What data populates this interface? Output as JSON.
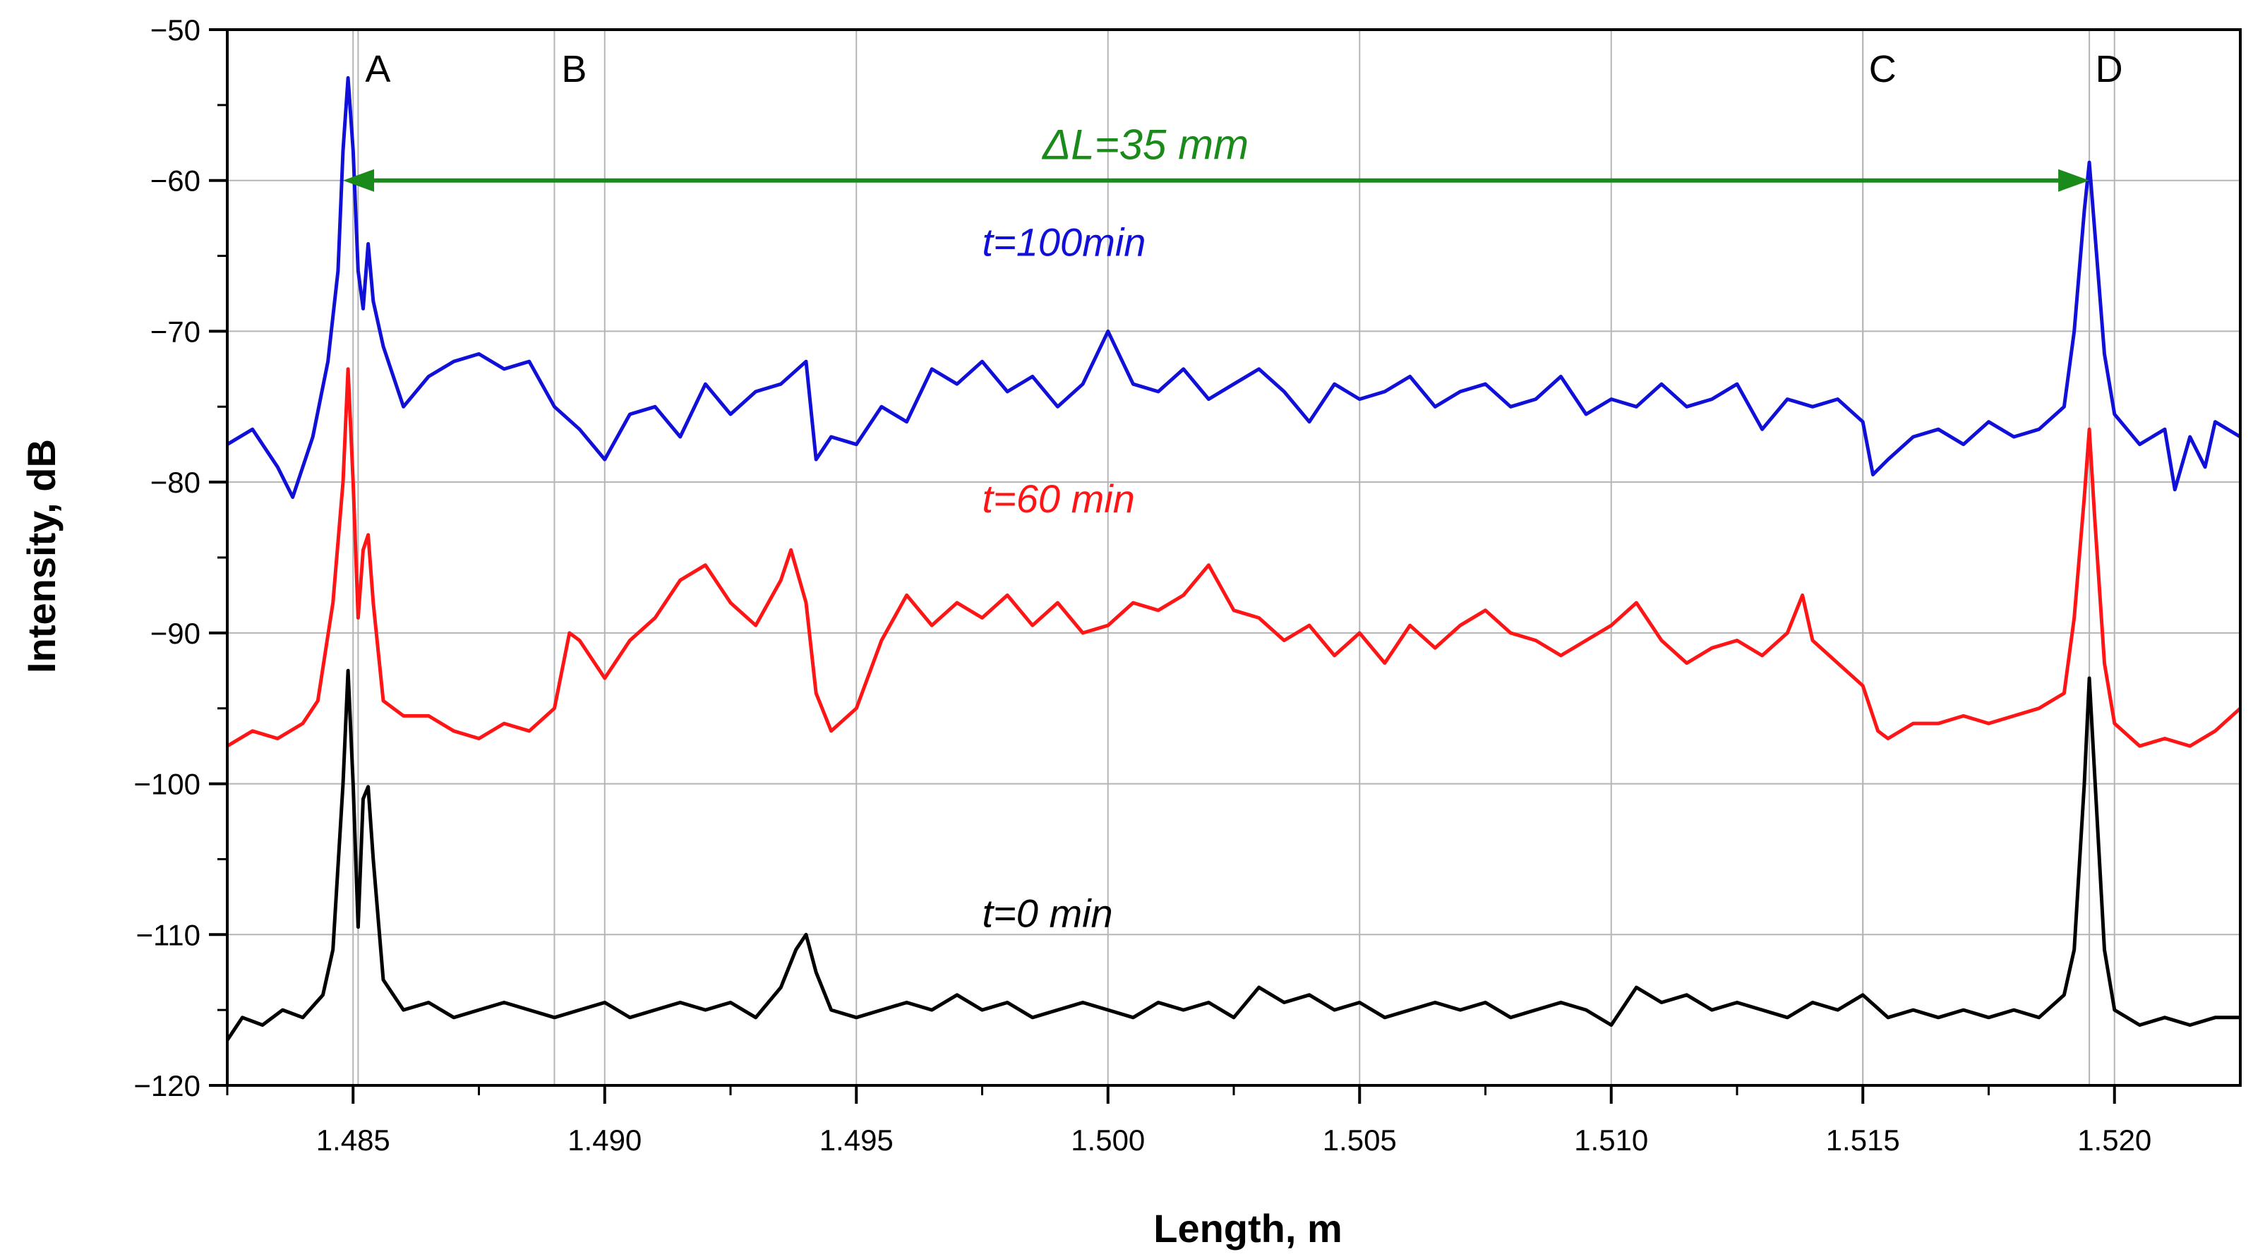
{
  "chart_data": {
    "type": "line",
    "xlabel": "Length, m",
    "ylabel": "Intensity, dB",
    "xlim": [
      1.4825,
      1.5225
    ],
    "ylim": [
      -120,
      -50
    ],
    "x_ticks": [
      1.485,
      1.49,
      1.495,
      1.5,
      1.505,
      1.51,
      1.515,
      1.52
    ],
    "x_tick_labels": [
      "1.485",
      "1.490",
      "1.495",
      "1.500",
      "1.505",
      "1.510",
      "1.515",
      "1.520"
    ],
    "y_ticks": [
      -50,
      -60,
      -70,
      -80,
      -90,
      -100,
      -110,
      -120
    ],
    "y_tick_labels": [
      "−50",
      "−60",
      "−70",
      "−80",
      "−90",
      "−100",
      "−110",
      "−120"
    ],
    "grid": true,
    "markers": [
      {
        "label": "A",
        "x": 1.4851
      },
      {
        "label": "B",
        "x": 1.489
      },
      {
        "label": "C",
        "x": 1.515
      },
      {
        "label": "D",
        "x": 1.5195
      }
    ],
    "annotation": {
      "text": "ΔL=35 mm",
      "x_start": 1.4848,
      "x_end": 1.5195,
      "y": -60,
      "color": "#1a8a1a"
    },
    "series": [
      {
        "name": "t=100min",
        "color": "#1010d8",
        "label_x": 1.4975,
        "label_y": -65,
        "points": [
          [
            1.4825,
            -77.5
          ],
          [
            1.483,
            -76.5
          ],
          [
            1.4835,
            -79.0
          ],
          [
            1.4838,
            -81.0
          ],
          [
            1.4842,
            -77.0
          ],
          [
            1.4845,
            -72.0
          ],
          [
            1.4847,
            -66.0
          ],
          [
            1.4848,
            -58.0
          ],
          [
            1.4849,
            -53.2
          ],
          [
            1.485,
            -58.0
          ],
          [
            1.4851,
            -66.0
          ],
          [
            1.4852,
            -68.5
          ],
          [
            1.4853,
            -64.2
          ],
          [
            1.4854,
            -68.0
          ],
          [
            1.4856,
            -71.0
          ],
          [
            1.486,
            -75.0
          ],
          [
            1.4865,
            -73.0
          ],
          [
            1.487,
            -72.0
          ],
          [
            1.4875,
            -71.5
          ],
          [
            1.488,
            -72.5
          ],
          [
            1.4885,
            -72.0
          ],
          [
            1.489,
            -75.0
          ],
          [
            1.4895,
            -76.5
          ],
          [
            1.49,
            -78.5
          ],
          [
            1.4905,
            -75.5
          ],
          [
            1.491,
            -75.0
          ],
          [
            1.4915,
            -77.0
          ],
          [
            1.492,
            -73.5
          ],
          [
            1.4925,
            -75.5
          ],
          [
            1.493,
            -74.0
          ],
          [
            1.4935,
            -73.5
          ],
          [
            1.494,
            -72.0
          ],
          [
            1.4942,
            -78.5
          ],
          [
            1.4945,
            -77.0
          ],
          [
            1.495,
            -77.5
          ],
          [
            1.4955,
            -75.0
          ],
          [
            1.496,
            -76.0
          ],
          [
            1.4965,
            -72.5
          ],
          [
            1.497,
            -73.5
          ],
          [
            1.4975,
            -72.0
          ],
          [
            1.498,
            -74.0
          ],
          [
            1.4985,
            -73.0
          ],
          [
            1.499,
            -75.0
          ],
          [
            1.4995,
            -73.5
          ],
          [
            1.5,
            -70.0
          ],
          [
            1.5005,
            -73.5
          ],
          [
            1.501,
            -74.0
          ],
          [
            1.5015,
            -72.5
          ],
          [
            1.502,
            -74.5
          ],
          [
            1.5025,
            -73.5
          ],
          [
            1.503,
            -72.5
          ],
          [
            1.5035,
            -74.0
          ],
          [
            1.504,
            -76.0
          ],
          [
            1.5045,
            -73.5
          ],
          [
            1.505,
            -74.5
          ],
          [
            1.5055,
            -74.0
          ],
          [
            1.506,
            -73.0
          ],
          [
            1.5065,
            -75.0
          ],
          [
            1.507,
            -74.0
          ],
          [
            1.5075,
            -73.5
          ],
          [
            1.508,
            -75.0
          ],
          [
            1.5085,
            -74.5
          ],
          [
            1.509,
            -73.0
          ],
          [
            1.5095,
            -75.5
          ],
          [
            1.51,
            -74.5
          ],
          [
            1.5105,
            -75.0
          ],
          [
            1.511,
            -73.5
          ],
          [
            1.5115,
            -75.0
          ],
          [
            1.512,
            -74.5
          ],
          [
            1.5125,
            -73.5
          ],
          [
            1.513,
            -76.5
          ],
          [
            1.5135,
            -74.5
          ],
          [
            1.514,
            -75.0
          ],
          [
            1.5145,
            -74.5
          ],
          [
            1.515,
            -76.0
          ],
          [
            1.5152,
            -79.5
          ],
          [
            1.5155,
            -78.5
          ],
          [
            1.516,
            -77.0
          ],
          [
            1.5165,
            -76.5
          ],
          [
            1.517,
            -77.5
          ],
          [
            1.5175,
            -76.0
          ],
          [
            1.518,
            -77.0
          ],
          [
            1.5185,
            -76.5
          ],
          [
            1.519,
            -75.0
          ],
          [
            1.5192,
            -70.0
          ],
          [
            1.5194,
            -62.0
          ],
          [
            1.5195,
            -58.8
          ],
          [
            1.5196,
            -63.0
          ],
          [
            1.5198,
            -71.5
          ],
          [
            1.52,
            -75.5
          ],
          [
            1.5205,
            -77.5
          ],
          [
            1.521,
            -76.5
          ],
          [
            1.5212,
            -80.5
          ],
          [
            1.5215,
            -77.0
          ],
          [
            1.5218,
            -79.0
          ],
          [
            1.522,
            -76.0
          ],
          [
            1.5225,
            -77.0
          ]
        ]
      },
      {
        "name": "t=60 min",
        "color": "#ff1515",
        "label_x": 1.4975,
        "label_y": -82,
        "points": [
          [
            1.4825,
            -97.5
          ],
          [
            1.483,
            -96.5
          ],
          [
            1.4835,
            -97.0
          ],
          [
            1.484,
            -96.0
          ],
          [
            1.4843,
            -94.5
          ],
          [
            1.4846,
            -88.0
          ],
          [
            1.4848,
            -80.0
          ],
          [
            1.4849,
            -72.5
          ],
          [
            1.485,
            -80.0
          ],
          [
            1.4851,
            -89.0
          ],
          [
            1.4852,
            -84.5
          ],
          [
            1.4853,
            -83.5
          ],
          [
            1.4854,
            -88.0
          ],
          [
            1.4856,
            -94.5
          ],
          [
            1.486,
            -95.5
          ],
          [
            1.4865,
            -95.5
          ],
          [
            1.487,
            -96.5
          ],
          [
            1.4875,
            -97.0
          ],
          [
            1.488,
            -96.0
          ],
          [
            1.4885,
            -96.5
          ],
          [
            1.489,
            -95.0
          ],
          [
            1.4893,
            -90.0
          ],
          [
            1.4895,
            -90.5
          ],
          [
            1.49,
            -93.0
          ],
          [
            1.4905,
            -90.5
          ],
          [
            1.491,
            -89.0
          ],
          [
            1.4915,
            -86.5
          ],
          [
            1.492,
            -85.5
          ],
          [
            1.4925,
            -88.0
          ],
          [
            1.493,
            -89.5
          ],
          [
            1.4935,
            -86.5
          ],
          [
            1.4937,
            -84.5
          ],
          [
            1.494,
            -88.0
          ],
          [
            1.4942,
            -94.0
          ],
          [
            1.4945,
            -96.5
          ],
          [
            1.495,
            -95.0
          ],
          [
            1.4955,
            -90.5
          ],
          [
            1.496,
            -87.5
          ],
          [
            1.4965,
            -89.5
          ],
          [
            1.497,
            -88.0
          ],
          [
            1.4975,
            -89.0
          ],
          [
            1.498,
            -87.5
          ],
          [
            1.4985,
            -89.5
          ],
          [
            1.499,
            -88.0
          ],
          [
            1.4995,
            -90.0
          ],
          [
            1.5,
            -89.5
          ],
          [
            1.5005,
            -88.0
          ],
          [
            1.501,
            -88.5
          ],
          [
            1.5015,
            -87.5
          ],
          [
            1.502,
            -85.5
          ],
          [
            1.5025,
            -88.5
          ],
          [
            1.503,
            -89.0
          ],
          [
            1.5035,
            -90.5
          ],
          [
            1.504,
            -89.5
          ],
          [
            1.5045,
            -91.5
          ],
          [
            1.505,
            -90.0
          ],
          [
            1.5055,
            -92.0
          ],
          [
            1.506,
            -89.5
          ],
          [
            1.5065,
            -91.0
          ],
          [
            1.507,
            -89.5
          ],
          [
            1.5075,
            -88.5
          ],
          [
            1.508,
            -90.0
          ],
          [
            1.5085,
            -90.5
          ],
          [
            1.509,
            -91.5
          ],
          [
            1.5095,
            -90.5
          ],
          [
            1.51,
            -89.5
          ],
          [
            1.5105,
            -88.0
          ],
          [
            1.511,
            -90.5
          ],
          [
            1.5115,
            -92.0
          ],
          [
            1.512,
            -91.0
          ],
          [
            1.5125,
            -90.5
          ],
          [
            1.513,
            -91.5
          ],
          [
            1.5135,
            -90.0
          ],
          [
            1.5138,
            -87.5
          ],
          [
            1.514,
            -90.5
          ],
          [
            1.5145,
            -92.0
          ],
          [
            1.515,
            -93.5
          ],
          [
            1.5153,
            -96.5
          ],
          [
            1.5155,
            -97.0
          ],
          [
            1.516,
            -96.0
          ],
          [
            1.5165,
            -96.0
          ],
          [
            1.517,
            -95.5
          ],
          [
            1.5175,
            -96.0
          ],
          [
            1.518,
            -95.5
          ],
          [
            1.5185,
            -95.0
          ],
          [
            1.519,
            -94.0
          ],
          [
            1.5192,
            -89.0
          ],
          [
            1.5194,
            -81.0
          ],
          [
            1.5195,
            -76.5
          ],
          [
            1.5196,
            -82.0
          ],
          [
            1.5198,
            -92.0
          ],
          [
            1.52,
            -96.0
          ],
          [
            1.5205,
            -97.5
          ],
          [
            1.521,
            -97.0
          ],
          [
            1.5215,
            -97.5
          ],
          [
            1.522,
            -96.5
          ],
          [
            1.5225,
            -95.0
          ]
        ]
      },
      {
        "name": "t=0 min",
        "color": "#000000",
        "label_x": 1.4975,
        "label_y": -109.5,
        "points": [
          [
            1.4825,
            -117.0
          ],
          [
            1.4828,
            -115.5
          ],
          [
            1.4832,
            -116.0
          ],
          [
            1.4836,
            -115.0
          ],
          [
            1.484,
            -115.5
          ],
          [
            1.4844,
            -114.0
          ],
          [
            1.4846,
            -111.0
          ],
          [
            1.4848,
            -100.0
          ],
          [
            1.4849,
            -92.5
          ],
          [
            1.485,
            -100.0
          ],
          [
            1.4851,
            -109.5
          ],
          [
            1.4852,
            -101.0
          ],
          [
            1.4853,
            -100.2
          ],
          [
            1.4854,
            -105.0
          ],
          [
            1.4856,
            -113.0
          ],
          [
            1.486,
            -115.0
          ],
          [
            1.4865,
            -114.5
          ],
          [
            1.487,
            -115.5
          ],
          [
            1.4875,
            -115.0
          ],
          [
            1.488,
            -114.5
          ],
          [
            1.4885,
            -115.0
          ],
          [
            1.489,
            -115.5
          ],
          [
            1.4895,
            -115.0
          ],
          [
            1.49,
            -114.5
          ],
          [
            1.4905,
            -115.5
          ],
          [
            1.491,
            -115.0
          ],
          [
            1.4915,
            -114.5
          ],
          [
            1.492,
            -115.0
          ],
          [
            1.4925,
            -114.5
          ],
          [
            1.493,
            -115.5
          ],
          [
            1.4935,
            -113.5
          ],
          [
            1.4938,
            -111.0
          ],
          [
            1.494,
            -110.0
          ],
          [
            1.4942,
            -112.5
          ],
          [
            1.4945,
            -115.0
          ],
          [
            1.495,
            -115.5
          ],
          [
            1.4955,
            -115.0
          ],
          [
            1.496,
            -114.5
          ],
          [
            1.4965,
            -115.0
          ],
          [
            1.497,
            -114.0
          ],
          [
            1.4975,
            -115.0
          ],
          [
            1.498,
            -114.5
          ],
          [
            1.4985,
            -115.5
          ],
          [
            1.499,
            -115.0
          ],
          [
            1.4995,
            -114.5
          ],
          [
            1.5,
            -115.0
          ],
          [
            1.5005,
            -115.5
          ],
          [
            1.501,
            -114.5
          ],
          [
            1.5015,
            -115.0
          ],
          [
            1.502,
            -114.5
          ],
          [
            1.5025,
            -115.5
          ],
          [
            1.503,
            -113.5
          ],
          [
            1.5035,
            -114.5
          ],
          [
            1.504,
            -114.0
          ],
          [
            1.5045,
            -115.0
          ],
          [
            1.505,
            -114.5
          ],
          [
            1.5055,
            -115.5
          ],
          [
            1.506,
            -115.0
          ],
          [
            1.5065,
            -114.5
          ],
          [
            1.507,
            -115.0
          ],
          [
            1.5075,
            -114.5
          ],
          [
            1.508,
            -115.5
          ],
          [
            1.5085,
            -115.0
          ],
          [
            1.509,
            -114.5
          ],
          [
            1.5095,
            -115.0
          ],
          [
            1.51,
            -116.0
          ],
          [
            1.5105,
            -113.5
          ],
          [
            1.511,
            -114.5
          ],
          [
            1.5115,
            -114.0
          ],
          [
            1.512,
            -115.0
          ],
          [
            1.5125,
            -114.5
          ],
          [
            1.513,
            -115.0
          ],
          [
            1.5135,
            -115.5
          ],
          [
            1.514,
            -114.5
          ],
          [
            1.5145,
            -115.0
          ],
          [
            1.515,
            -114.0
          ],
          [
            1.5155,
            -115.5
          ],
          [
            1.516,
            -115.0
          ],
          [
            1.5165,
            -115.5
          ],
          [
            1.517,
            -115.0
          ],
          [
            1.5175,
            -115.5
          ],
          [
            1.518,
            -115.0
          ],
          [
            1.5185,
            -115.5
          ],
          [
            1.519,
            -114.0
          ],
          [
            1.5192,
            -111.0
          ],
          [
            1.5194,
            -100.0
          ],
          [
            1.5195,
            -93.0
          ],
          [
            1.5196,
            -99.0
          ],
          [
            1.5198,
            -111.0
          ],
          [
            1.52,
            -115.0
          ],
          [
            1.5205,
            -116.0
          ],
          [
            1.521,
            -115.5
          ],
          [
            1.5215,
            -116.0
          ],
          [
            1.522,
            -115.5
          ],
          [
            1.5225,
            -115.5
          ]
        ]
      }
    ]
  }
}
